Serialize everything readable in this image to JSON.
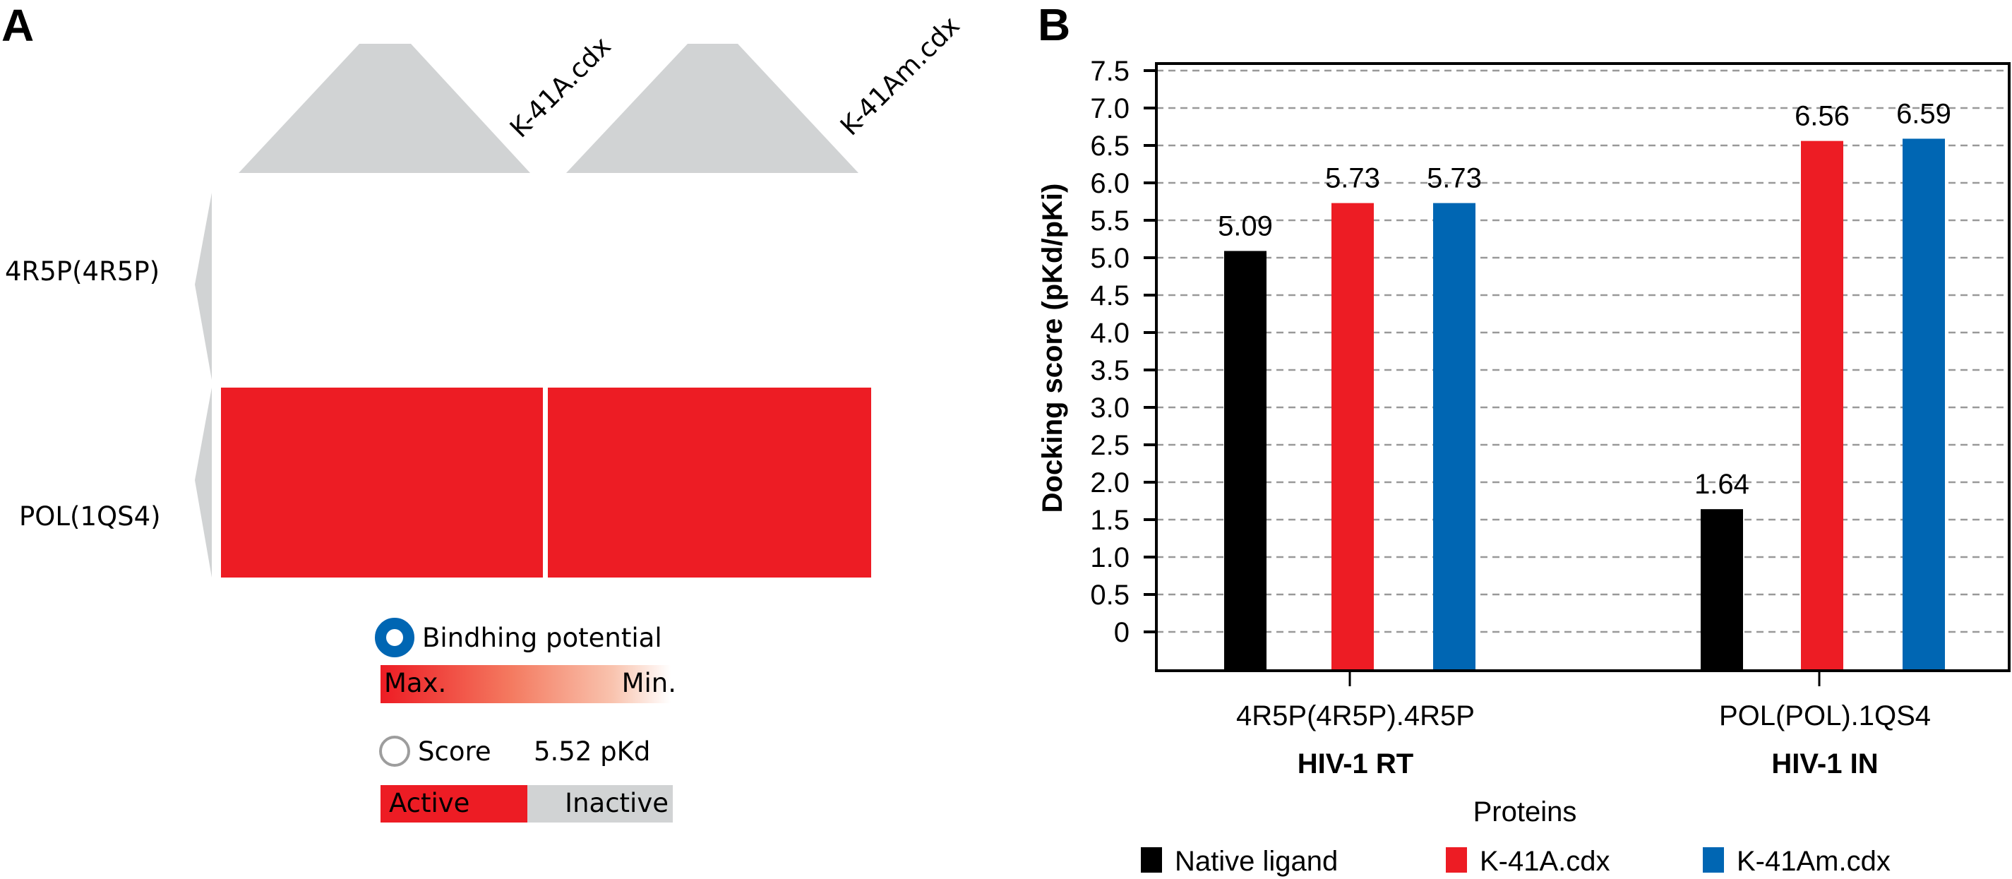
{
  "panel_a": {
    "letter": "A",
    "columns": [
      "K-41A.cdx",
      "K-41Am.cdx"
    ],
    "rows": [
      "4R5P(4R5P)",
      "POL(1QS4)"
    ],
    "cells": [
      [
        null,
        null
      ],
      [
        "active",
        "active"
      ]
    ],
    "legend": {
      "binding_label": "Bindhing potential",
      "gradient_max": "Max.",
      "gradient_min": "Min.",
      "score_label": "Score",
      "score_value": "5.52 pKd",
      "active_label": "Active",
      "inactive_label": "Inactive"
    },
    "colors": {
      "active": "#ed1c24",
      "inactive": "#d1d3d4",
      "dendrogram": "#d1d3d4",
      "binding_ring": "#0066b3",
      "score_ring": "#9d9d9d"
    }
  },
  "panel_b": {
    "letter": "B"
  },
  "chart_data": {
    "type": "bar",
    "title": "",
    "xlabel": "Proteins",
    "ylabel": "Docking score (pKd/pKi)",
    "ylim": [
      -0.5,
      7.7
    ],
    "yticks": [
      0,
      0.5,
      1.0,
      1.5,
      2.0,
      2.5,
      3.0,
      3.5,
      4.0,
      4.5,
      5.0,
      5.5,
      6.0,
      6.5,
      7.0,
      7.5
    ],
    "ytick_labels": [
      "0",
      "0.5",
      "1.0",
      "1.5",
      "2.0",
      "2.5",
      "3.0",
      "3.5",
      "4.0",
      "4.5",
      "5.0",
      "5.5",
      "6.0",
      "6.5",
      "7.0",
      "7.5"
    ],
    "grid": true,
    "categories": [
      "4R5P(4R5P).4R5P",
      "POL(POL).1QS4"
    ],
    "category_groups": [
      "HIV-1 RT",
      "HIV-1 IN"
    ],
    "series": [
      {
        "name": "Native ligand",
        "color": "#000000",
        "values": [
          5.09,
          1.64
        ],
        "labels": [
          "5.09",
          "1.64"
        ]
      },
      {
        "name": "K-41A.cdx",
        "color": "#ed1c24",
        "values": [
          5.73,
          6.56
        ],
        "labels": [
          "5.73",
          "6.56"
        ]
      },
      {
        "name": "K-41Am.cdx",
        "color": "#0066b3",
        "values": [
          5.73,
          6.59
        ],
        "labels": [
          "5.73",
          "6.59"
        ]
      }
    ],
    "legend_position": "bottom"
  }
}
